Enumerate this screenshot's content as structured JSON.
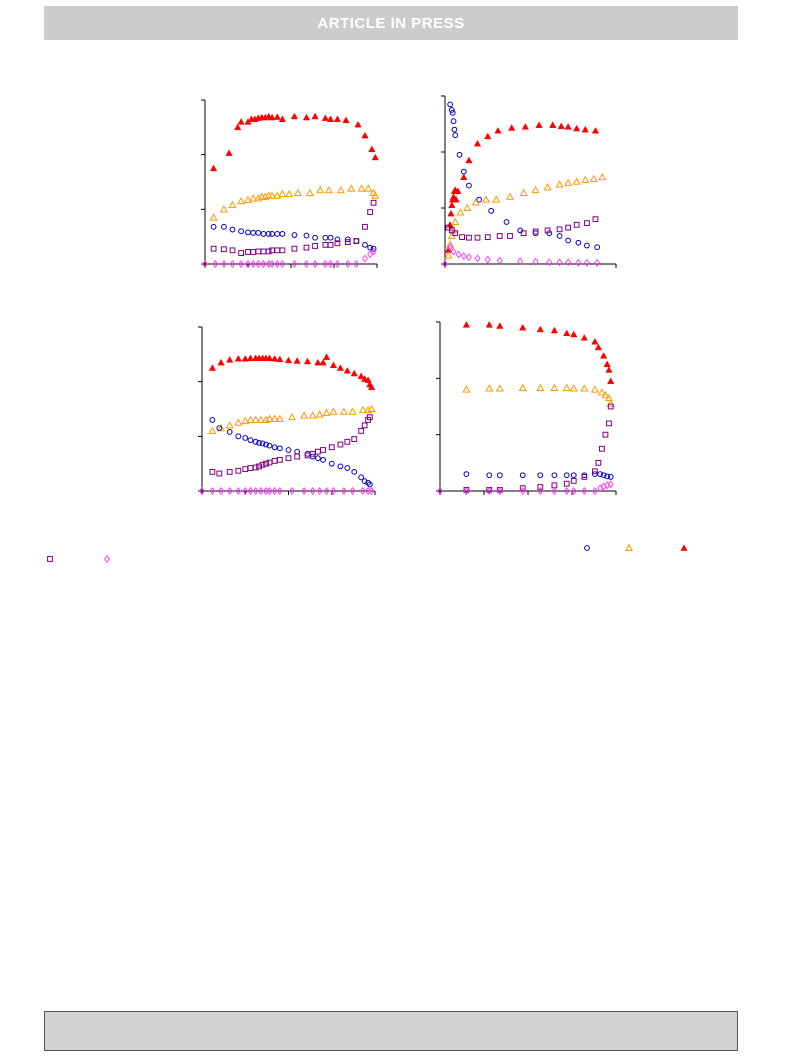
{
  "header": {
    "banner_text": "ARTICLE  IN  PRESS"
  },
  "colors": {
    "banner_bg": "#cccccc",
    "footer_bg": "#d3d3d3",
    "circle": "#0000cc",
    "open_triangle": "#ff9900",
    "filled_triangle": "#ff0000",
    "square": "#800080",
    "diamond": "#ff33ff"
  },
  "legend": {
    "markers": [
      "circle",
      "open-triangle",
      "filled-triangle",
      "square",
      "diamond"
    ]
  },
  "chart_data": [
    {
      "type": "scatter",
      "title": "",
      "xlabel": "",
      "ylabel": "",
      "xlim": [
        0,
        1
      ],
      "ylim": [
        0,
        3
      ],
      "series": [
        {
          "marker": "filled-triangle",
          "x": [
            0.05,
            0.14,
            0.19,
            0.21,
            0.25,
            0.27,
            0.29,
            0.31,
            0.33,
            0.35,
            0.37,
            0.39,
            0.42,
            0.45,
            0.52,
            0.59,
            0.64,
            0.7,
            0.73,
            0.77,
            0.82,
            0.89,
            0.93,
            0.97,
            0.99
          ],
          "y": [
            1.75,
            2.03,
            2.5,
            2.6,
            2.6,
            2.65,
            2.65,
            2.67,
            2.68,
            2.68,
            2.7,
            2.68,
            2.69,
            2.65,
            2.7,
            2.68,
            2.7,
            2.67,
            2.65,
            2.65,
            2.63,
            2.55,
            2.35,
            2.1,
            1.95
          ]
        },
        {
          "marker": "open-triangle",
          "x": [
            0.05,
            0.11,
            0.16,
            0.21,
            0.25,
            0.28,
            0.31,
            0.33,
            0.35,
            0.37,
            0.39,
            0.42,
            0.45,
            0.49,
            0.54,
            0.61,
            0.67,
            0.72,
            0.79,
            0.85,
            0.91,
            0.95,
            0.98,
            0.99
          ],
          "y": [
            0.85,
            1.0,
            1.08,
            1.15,
            1.17,
            1.2,
            1.2,
            1.23,
            1.23,
            1.25,
            1.25,
            1.25,
            1.28,
            1.28,
            1.3,
            1.3,
            1.35,
            1.35,
            1.35,
            1.38,
            1.38,
            1.38,
            1.3,
            1.25
          ]
        },
        {
          "marker": "circle",
          "x": [
            0.05,
            0.11,
            0.16,
            0.21,
            0.25,
            0.28,
            0.31,
            0.34,
            0.37,
            0.39,
            0.42,
            0.45,
            0.52,
            0.59,
            0.64,
            0.7,
            0.73,
            0.77,
            0.83,
            0.88,
            0.93,
            0.96,
            0.98
          ],
          "y": [
            0.68,
            0.68,
            0.63,
            0.6,
            0.58,
            0.57,
            0.57,
            0.55,
            0.55,
            0.55,
            0.55,
            0.55,
            0.53,
            0.52,
            0.48,
            0.48,
            0.48,
            0.45,
            0.45,
            0.42,
            0.35,
            0.3,
            0.28
          ]
        },
        {
          "marker": "square",
          "x": [
            0.05,
            0.11,
            0.16,
            0.21,
            0.25,
            0.28,
            0.31,
            0.34,
            0.37,
            0.39,
            0.42,
            0.45,
            0.52,
            0.59,
            0.64,
            0.7,
            0.73,
            0.77,
            0.83,
            0.88,
            0.93,
            0.96,
            0.98
          ],
          "y": [
            0.28,
            0.27,
            0.25,
            0.2,
            0.22,
            0.22,
            0.23,
            0.23,
            0.23,
            0.25,
            0.25,
            0.25,
            0.28,
            0.3,
            0.33,
            0.35,
            0.35,
            0.38,
            0.4,
            0.42,
            0.68,
            0.95,
            1.12
          ]
        },
        {
          "marker": "diamond",
          "x": [
            0.0,
            0.06,
            0.11,
            0.16,
            0.21,
            0.25,
            0.28,
            0.31,
            0.34,
            0.37,
            0.39,
            0.42,
            0.45,
            0.52,
            0.59,
            0.64,
            0.7,
            0.73,
            0.77,
            0.83,
            0.88,
            0.93,
            0.96,
            0.98
          ],
          "y": [
            0.0,
            0.0,
            0.0,
            0.0,
            0.0,
            0.0,
            0.0,
            0.0,
            0.0,
            0.0,
            0.0,
            0.0,
            0.0,
            0.0,
            0.0,
            0.0,
            0.0,
            0.0,
            0.0,
            0.0,
            0.0,
            0.1,
            0.18,
            0.23
          ]
        }
      ]
    },
    {
      "type": "scatter",
      "title": "",
      "xlabel": "",
      "ylabel": "",
      "xlim": [
        0,
        1
      ],
      "ylim": [
        0,
        3
      ],
      "series": [
        {
          "marker": "circle",
          "x": [
            0.03,
            0.04,
            0.045,
            0.05,
            0.055,
            0.06,
            0.085,
            0.11,
            0.14,
            0.2,
            0.27,
            0.36,
            0.44,
            0.53,
            0.61,
            0.67,
            0.72,
            0.78,
            0.83,
            0.89
          ],
          "y": [
            2.85,
            2.75,
            2.7,
            2.55,
            2.4,
            2.3,
            1.95,
            1.65,
            1.4,
            1.15,
            0.95,
            0.75,
            0.6,
            0.55,
            0.55,
            0.5,
            0.42,
            0.38,
            0.33,
            0.3
          ]
        },
        {
          "marker": "filled-triangle",
          "x": [
            0.02,
            0.03,
            0.035,
            0.04,
            0.045,
            0.05,
            0.055,
            0.06,
            0.065,
            0.075,
            0.11,
            0.14,
            0.19,
            0.25,
            0.31,
            0.39,
            0.47,
            0.55,
            0.63,
            0.68,
            0.72,
            0.77,
            0.82,
            0.88
          ],
          "y": [
            0.25,
            0.7,
            0.9,
            1.05,
            1.15,
            1.2,
            1.3,
            1.32,
            1.15,
            1.3,
            1.55,
            1.85,
            2.15,
            2.28,
            2.38,
            2.43,
            2.45,
            2.48,
            2.48,
            2.46,
            2.45,
            2.42,
            2.4,
            2.38
          ]
        },
        {
          "marker": "open-triangle",
          "x": [
            0.02,
            0.03,
            0.04,
            0.05,
            0.06,
            0.09,
            0.13,
            0.18,
            0.24,
            0.3,
            0.38,
            0.46,
            0.53,
            0.6,
            0.67,
            0.72,
            0.77,
            0.82,
            0.87,
            0.92
          ],
          "y": [
            0.15,
            0.35,
            0.5,
            0.6,
            0.75,
            0.92,
            1.0,
            1.1,
            1.15,
            1.15,
            1.2,
            1.27,
            1.32,
            1.37,
            1.42,
            1.45,
            1.47,
            1.5,
            1.52,
            1.55
          ]
        },
        {
          "marker": "square",
          "x": [
            0.02,
            0.04,
            0.06,
            0.1,
            0.14,
            0.19,
            0.25,
            0.32,
            0.38,
            0.46,
            0.53,
            0.6,
            0.67,
            0.72,
            0.77,
            0.83,
            0.88
          ],
          "y": [
            0.65,
            0.6,
            0.55,
            0.48,
            0.47,
            0.47,
            0.48,
            0.5,
            0.5,
            0.55,
            0.58,
            0.6,
            0.62,
            0.65,
            0.7,
            0.73,
            0.8
          ]
        },
        {
          "marker": "diamond",
          "x": [
            0.0,
            0.03,
            0.05,
            0.08,
            0.11,
            0.14,
            0.19,
            0.25,
            0.32,
            0.44,
            0.53,
            0.61,
            0.67,
            0.72,
            0.78,
            0.83,
            0.89
          ],
          "y": [
            0.0,
            0.3,
            0.22,
            0.17,
            0.14,
            0.12,
            0.1,
            0.08,
            0.06,
            0.05,
            0.04,
            0.03,
            0.03,
            0.03,
            0.02,
            0.02,
            0.02
          ]
        }
      ]
    },
    {
      "type": "scatter",
      "title": "",
      "xlabel": "",
      "ylabel": "",
      "xlim": [
        0,
        1
      ],
      "ylim": [
        0,
        3
      ],
      "series": [
        {
          "marker": "filled-triangle",
          "x": [
            0.06,
            0.11,
            0.16,
            0.21,
            0.25,
            0.28,
            0.31,
            0.33,
            0.35,
            0.37,
            0.39,
            0.42,
            0.45,
            0.5,
            0.55,
            0.61,
            0.67,
            0.7,
            0.72,
            0.76,
            0.8,
            0.84,
            0.88,
            0.92,
            0.94,
            0.96,
            0.97,
            0.98
          ],
          "y": [
            2.25,
            2.35,
            2.4,
            2.42,
            2.42,
            2.43,
            2.43,
            2.43,
            2.43,
            2.43,
            2.43,
            2.42,
            2.41,
            2.39,
            2.38,
            2.37,
            2.35,
            2.35,
            2.45,
            2.3,
            2.25,
            2.2,
            2.15,
            2.1,
            2.05,
            2.03,
            1.95,
            1.9
          ]
        },
        {
          "marker": "open-triangle",
          "x": [
            0.06,
            0.11,
            0.16,
            0.21,
            0.25,
            0.28,
            0.31,
            0.34,
            0.37,
            0.39,
            0.42,
            0.45,
            0.52,
            0.59,
            0.64,
            0.68,
            0.72,
            0.76,
            0.82,
            0.87,
            0.93,
            0.96,
            0.98
          ],
          "y": [
            1.1,
            1.15,
            1.2,
            1.25,
            1.28,
            1.3,
            1.3,
            1.3,
            1.3,
            1.32,
            1.32,
            1.32,
            1.35,
            1.38,
            1.38,
            1.4,
            1.43,
            1.45,
            1.45,
            1.45,
            1.48,
            1.48,
            1.5
          ]
        },
        {
          "marker": "circle",
          "x": [
            0.06,
            0.1,
            0.16,
            0.21,
            0.25,
            0.28,
            0.31,
            0.33,
            0.35,
            0.37,
            0.39,
            0.42,
            0.45,
            0.5,
            0.55,
            0.61,
            0.64,
            0.67,
            0.7,
            0.75,
            0.8,
            0.84,
            0.88,
            0.92,
            0.94,
            0.96,
            0.97
          ],
          "y": [
            1.3,
            1.15,
            1.08,
            1.0,
            0.97,
            0.93,
            0.9,
            0.88,
            0.87,
            0.85,
            0.83,
            0.8,
            0.78,
            0.75,
            0.72,
            0.68,
            0.63,
            0.6,
            0.57,
            0.5,
            0.45,
            0.42,
            0.35,
            0.25,
            0.18,
            0.15,
            0.12
          ]
        },
        {
          "marker": "square",
          "x": [
            0.06,
            0.1,
            0.16,
            0.21,
            0.25,
            0.28,
            0.31,
            0.33,
            0.35,
            0.37,
            0.39,
            0.42,
            0.45,
            0.5,
            0.55,
            0.61,
            0.64,
            0.67,
            0.7,
            0.75,
            0.8,
            0.84,
            0.88,
            0.92,
            0.94,
            0.96,
            0.97
          ],
          "y": [
            0.35,
            0.32,
            0.35,
            0.37,
            0.4,
            0.42,
            0.43,
            0.45,
            0.48,
            0.5,
            0.52,
            0.55,
            0.57,
            0.6,
            0.63,
            0.65,
            0.68,
            0.72,
            0.75,
            0.8,
            0.85,
            0.9,
            0.95,
            1.1,
            1.2,
            1.3,
            1.35
          ]
        },
        {
          "marker": "diamond",
          "x": [
            0.0,
            0.06,
            0.11,
            0.16,
            0.21,
            0.25,
            0.28,
            0.31,
            0.34,
            0.37,
            0.39,
            0.42,
            0.45,
            0.52,
            0.59,
            0.64,
            0.68,
            0.72,
            0.76,
            0.82,
            0.87,
            0.93,
            0.96,
            0.98
          ],
          "y": [
            0.0,
            0.0,
            0.0,
            0.0,
            0.0,
            0.0,
            0.0,
            0.0,
            0.0,
            0.0,
            0.0,
            0.0,
            0.0,
            0.0,
            0.0,
            0.0,
            0.0,
            0.0,
            0.0,
            0.0,
            0.0,
            0.0,
            0.0,
            0.0
          ]
        }
      ]
    },
    {
      "type": "scatter",
      "title": "",
      "xlabel": "",
      "ylabel": "",
      "xlim": [
        0,
        1
      ],
      "ylim": [
        0,
        3
      ],
      "series": [
        {
          "marker": "filled-triangle",
          "x": [
            0.15,
            0.28,
            0.34,
            0.47,
            0.57,
            0.65,
            0.72,
            0.76,
            0.82,
            0.88,
            0.9,
            0.93,
            0.95,
            0.96,
            0.97
          ],
          "y": [
            2.95,
            2.95,
            2.93,
            2.9,
            2.87,
            2.85,
            2.8,
            2.78,
            2.72,
            2.65,
            2.55,
            2.4,
            2.25,
            2.15,
            1.95
          ]
        },
        {
          "marker": "open-triangle",
          "x": [
            0.15,
            0.28,
            0.34,
            0.47,
            0.57,
            0.65,
            0.72,
            0.76,
            0.82,
            0.88,
            0.92,
            0.94,
            0.96,
            0.97
          ],
          "y": [
            1.8,
            1.82,
            1.82,
            1.83,
            1.83,
            1.83,
            1.83,
            1.82,
            1.82,
            1.8,
            1.75,
            1.7,
            1.65,
            1.55
          ]
        },
        {
          "marker": "circle",
          "x": [
            0.15,
            0.28,
            0.34,
            0.47,
            0.57,
            0.65,
            0.72,
            0.76,
            0.82,
            0.88,
            0.91,
            0.93,
            0.95,
            0.97
          ],
          "y": [
            0.3,
            0.28,
            0.28,
            0.28,
            0.28,
            0.28,
            0.28,
            0.28,
            0.28,
            0.3,
            0.3,
            0.28,
            0.26,
            0.25
          ]
        },
        {
          "marker": "square",
          "x": [
            0.15,
            0.28,
            0.34,
            0.47,
            0.57,
            0.65,
            0.72,
            0.76,
            0.82,
            0.88,
            0.9,
            0.92,
            0.94,
            0.96,
            0.97
          ],
          "y": [
            0.02,
            0.02,
            0.02,
            0.05,
            0.07,
            0.1,
            0.13,
            0.18,
            0.25,
            0.35,
            0.5,
            0.75,
            1.0,
            1.2,
            1.5
          ]
        },
        {
          "marker": "diamond",
          "x": [
            0.0,
            0.15,
            0.28,
            0.34,
            0.47,
            0.57,
            0.65,
            0.72,
            0.76,
            0.82,
            0.88,
            0.91,
            0.93,
            0.95,
            0.97
          ],
          "y": [
            0.0,
            0.0,
            0.0,
            0.0,
            0.0,
            0.0,
            0.0,
            0.0,
            0.0,
            0.0,
            0.0,
            0.05,
            0.08,
            0.1,
            0.12
          ]
        }
      ]
    }
  ]
}
